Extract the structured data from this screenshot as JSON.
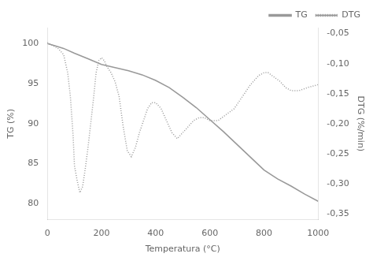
{
  "chart_data": {
    "type": "line",
    "xlabel": "Temperatura (°C)",
    "ylabel": "TG (%)",
    "y2label": "DTG (%/min)",
    "xlim": [
      0,
      1000
    ],
    "xticks": [
      0,
      200,
      400,
      600,
      800,
      1000
    ],
    "ylim": [
      78,
      102
    ],
    "yticks": [
      80,
      85,
      90,
      95,
      100
    ],
    "y2lim": [
      -0.36,
      -0.04
    ],
    "y2ticks": [
      {
        "value": -0.35,
        "label": "-0,35"
      },
      {
        "value": -0.3,
        "label": "-0,30"
      },
      {
        "value": -0.25,
        "label": "-0,25"
      },
      {
        "value": -0.2,
        "label": "-0,20"
      },
      {
        "value": -0.15,
        "label": "-0,15"
      },
      {
        "value": -0.1,
        "label": "-0,10"
      },
      {
        "value": -0.05,
        "label": "-0,05"
      }
    ],
    "grid": false,
    "legend": "upper right",
    "series": [
      {
        "name": "TG",
        "color": "#999999",
        "line_style": "solid",
        "x": [
          0,
          30,
          60,
          100,
          150,
          200,
          250,
          300,
          350,
          400,
          450,
          500,
          550,
          600,
          650,
          700,
          750,
          800,
          850,
          900,
          950,
          1000
        ],
        "values": [
          100.0,
          99.7,
          99.4,
          98.8,
          98.1,
          97.4,
          97.0,
          96.6,
          96.1,
          95.4,
          94.5,
          93.3,
          92.0,
          90.5,
          89.0,
          87.4,
          85.8,
          84.2,
          83.1,
          82.2,
          81.2,
          80.3
        ]
      },
      {
        "name": "DTG",
        "color": "#999999",
        "line_style": "dotted",
        "axis": "y2",
        "x": [
          0,
          20,
          40,
          60,
          75,
          85,
          95,
          100,
          110,
          120,
          130,
          140,
          150,
          160,
          170,
          180,
          190,
          200,
          210,
          220,
          235,
          250,
          265,
          280,
          295,
          310,
          325,
          340,
          355,
          370,
          385,
          400,
          420,
          440,
          460,
          480,
          500,
          520,
          540,
          560,
          580,
          600,
          630,
          660,
          690,
          720,
          750,
          780,
          800,
          815,
          830,
          845,
          860,
          880,
          900,
          930,
          960,
          1000
        ],
        "values": [
          -0.065,
          -0.07,
          -0.075,
          -0.085,
          -0.115,
          -0.155,
          -0.22,
          -0.27,
          -0.295,
          -0.315,
          -0.305,
          -0.275,
          -0.24,
          -0.2,
          -0.16,
          -0.115,
          -0.095,
          -0.09,
          -0.095,
          -0.105,
          -0.115,
          -0.13,
          -0.155,
          -0.205,
          -0.245,
          -0.255,
          -0.24,
          -0.215,
          -0.195,
          -0.175,
          -0.165,
          -0.165,
          -0.175,
          -0.195,
          -0.215,
          -0.225,
          -0.215,
          -0.205,
          -0.195,
          -0.19,
          -0.19,
          -0.195,
          -0.195,
          -0.185,
          -0.175,
          -0.155,
          -0.135,
          -0.12,
          -0.115,
          -0.115,
          -0.12,
          -0.125,
          -0.13,
          -0.14,
          -0.145,
          -0.145,
          -0.14,
          -0.135
        ]
      }
    ]
  }
}
